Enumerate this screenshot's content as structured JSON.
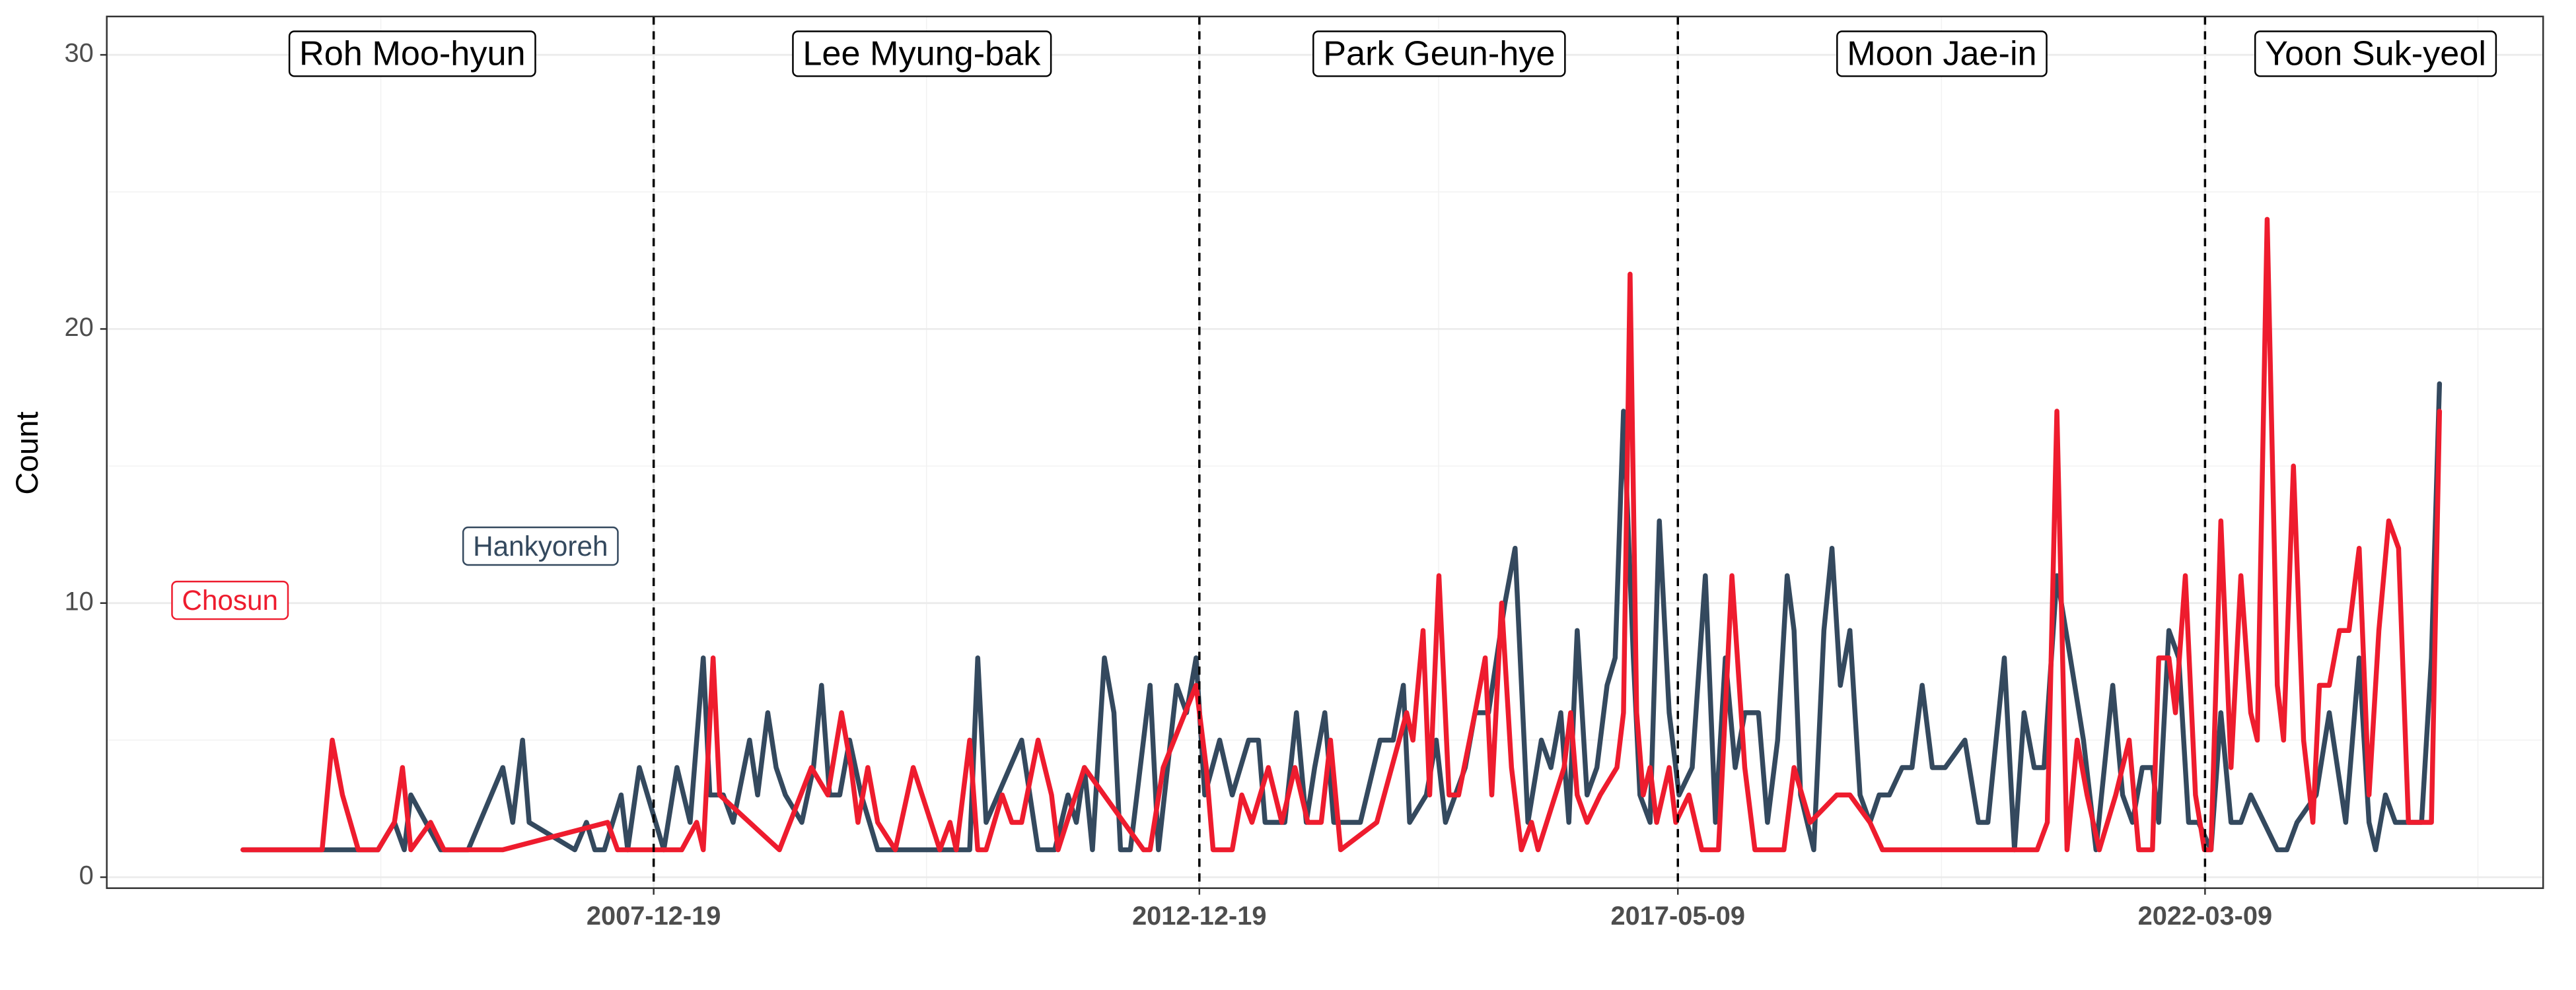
{
  "chart_data": {
    "type": "line",
    "y_label": "Count",
    "grid": true,
    "xlim": [
      "2002-12-14",
      "2025-04-14"
    ],
    "xticks": [
      "2007-12-19",
      "2012-12-19",
      "2017-05-09",
      "2022-03-09"
    ],
    "ylim": [
      -0.4,
      31.4
    ],
    "yticks": [
      0,
      10,
      20,
      30
    ],
    "periods": [
      "Roh Moo-hyun",
      "Lee Myung-bak",
      "Park Geun-hye",
      "Moon Jae-in",
      "Yoon Suk-yeol"
    ],
    "series": [
      {
        "name": "Hankyoreh",
        "color": "#34495e",
        "x": [
          "2004-03-14",
          "2005-06-09",
          "2005-08-03",
          "2005-09-05",
          "2005-09-27",
          "2006-01-05",
          "2006-04-07",
          "2006-08-01",
          "2006-09-03",
          "2006-10-06",
          "2006-10-28",
          "2007-03-30",
          "2007-05-08",
          "2007-06-05",
          "2007-07-07",
          "2007-09-01",
          "2007-09-23",
          "2007-11-01",
          "2008-01-22",
          "2008-03-06",
          "2008-04-19",
          "2008-06-02",
          "2008-06-24",
          "2008-08-08",
          "2008-09-10",
          "2008-11-04",
          "2008-12-01",
          "2009-01-04",
          "2009-02-01",
          "2009-03-04",
          "2009-04-28",
          "2009-06-06",
          "2009-07-03",
          "2009-07-30",
          "2009-09-02",
          "2009-10-05",
          "2009-11-13",
          "2010-01-07",
          "2010-08-19",
          "2010-11-11",
          "2010-12-08",
          "2011-01-05",
          "2011-05-04",
          "2011-06-28",
          "2011-08-23",
          "2011-10-06",
          "2011-11-03",
          "2011-11-30",
          "2011-12-27",
          "2012-02-05",
          "2012-03-08",
          "2012-03-30",
          "2012-05-02",
          "2012-07-07",
          "2012-08-04",
          "2012-10-04",
          "2012-11-06",
          "2012-12-08",
          "2013-01-06",
          "2013-02-25",
          "2013-04-08",
          "2013-06-02",
          "2013-07-05",
          "2013-07-27",
          "2013-10-01",
          "2013-11-09",
          "2013-12-12",
          "2014-01-09",
          "2014-02-12",
          "2014-03-14",
          "2014-06-11",
          "2014-08-16",
          "2014-09-29",
          "2014-11-02",
          "2014-11-23",
          "2015-01-18",
          "2015-02-20",
          "2015-03-23",
          "2015-05-28",
          "2015-06-30",
          "2015-08-14",
          "2015-10-08",
          "2015-11-11",
          "2015-12-24",
          "2016-02-07",
          "2016-03-10",
          "2016-04-12",
          "2016-05-09",
          "2016-06-06",
          "2016-07-09",
          "2016-08-11",
          "2016-09-14",
          "2016-10-11",
          "2016-11-08",
          "2016-12-11",
          "2017-01-02",
          "2017-02-05",
          "2017-03-08",
          "2017-04-10",
          "2017-05-13",
          "2017-06-26",
          "2017-08-09",
          "2017-09-12",
          "2017-10-15",
          "2017-11-17",
          "2017-12-19",
          "2018-02-03",
          "2018-03-05",
          "2018-04-08",
          "2018-05-10",
          "2018-06-02",
          "2018-06-24",
          "2018-08-07",
          "2018-09-10",
          "2018-10-07",
          "2018-11-04",
          "2018-12-06",
          "2019-01-09",
          "2019-02-11",
          "2019-03-14",
          "2019-04-17",
          "2019-05-30",
          "2019-07-02",
          "2019-08-05",
          "2019-09-08",
          "2019-10-21",
          "2019-12-26",
          "2020-02-09",
          "2020-03-12",
          "2020-05-06",
          "2020-06-09",
          "2020-07-11",
          "2020-08-14",
          "2020-09-16",
          "2020-10-29",
          "2020-12-13",
          "2021-01-26",
          "2021-03-09",
          "2021-05-04",
          "2021-06-06",
          "2021-07-09",
          "2021-08-11",
          "2021-09-14",
          "2021-10-05",
          "2021-11-08",
          "2021-12-11",
          "2022-01-13",
          "2022-02-15",
          "2022-03-29",
          "2022-05-01",
          "2022-06-04",
          "2022-07-07",
          "2022-08-09",
          "2022-11-06",
          "2022-12-08",
          "2023-01-11",
          "2023-03-16",
          "2023-04-29",
          "2023-06-23",
          "2023-08-07",
          "2023-09-09",
          "2023-10-01",
          "2023-11-03",
          "2023-12-06",
          "2024-01-19",
          "2024-03-03",
          "2024-04-05",
          "2024-05-02"
        ],
        "values": [
          1,
          1,
          2,
          1,
          3,
          1,
          1,
          4,
          2,
          5,
          2,
          1,
          2,
          1,
          1,
          3,
          1,
          4,
          1,
          4,
          2,
          8,
          3,
          3,
          2,
          5,
          3,
          6,
          4,
          3,
          2,
          4,
          7,
          3,
          3,
          5,
          3,
          1,
          1,
          1,
          8,
          2,
          5,
          1,
          1,
          3,
          2,
          4,
          1,
          8,
          6,
          1,
          1,
          7,
          1,
          7,
          6,
          8,
          3,
          5,
          3,
          5,
          5,
          2,
          2,
          6,
          2,
          4,
          6,
          2,
          2,
          5,
          5,
          7,
          2,
          3,
          5,
          2,
          4,
          6,
          6,
          10,
          12,
          2,
          5,
          4,
          6,
          2,
          9,
          3,
          4,
          7,
          8,
          17,
          8,
          3,
          2,
          13,
          6,
          3,
          4,
          11,
          2,
          8,
          4,
          6,
          6,
          2,
          5,
          11,
          9,
          3,
          1,
          9,
          12,
          7,
          9,
          3,
          2,
          3,
          3,
          4,
          4,
          7,
          4,
          4,
          5,
          2,
          2,
          8,
          1,
          6,
          4,
          4,
          11,
          8,
          5,
          1,
          7,
          3,
          2,
          4,
          4,
          2,
          9,
          8,
          2,
          2,
          1,
          6,
          2,
          2,
          3,
          1,
          1,
          2,
          3,
          6,
          2,
          8,
          2,
          1,
          3,
          2,
          2,
          2,
          8,
          18
        ]
      },
      {
        "name": "Chosun",
        "color": "#ee1c2e",
        "x": [
          "2004-03-14",
          "2004-12-04",
          "2005-01-07",
          "2005-02-10",
          "2005-04-04",
          "2005-06-09",
          "2005-08-03",
          "2005-08-30",
          "2005-09-27",
          "2005-12-02",
          "2006-01-16",
          "2006-08-01",
          "2007-07-18",
          "2007-08-20",
          "2007-12-19",
          "2008-03-22",
          "2008-05-11",
          "2008-06-02",
          "2008-07-05",
          "2008-07-27",
          "2009-02-12",
          "2009-05-30",
          "2009-07-24",
          "2009-09-08",
          "2009-10-10",
          "2009-11-02",
          "2009-12-05",
          "2010-01-07",
          "2010-03-07",
          "2010-05-06",
          "2010-08-03",
          "2010-09-06",
          "2010-09-27",
          "2010-11-11",
          "2010-12-08",
          "2011-01-05",
          "2011-02-28",
          "2011-04-01",
          "2011-05-04",
          "2011-06-28",
          "2011-08-12",
          "2011-09-03",
          "2011-11-30",
          "2012-06-15",
          "2012-07-07",
          "2012-08-20",
          "2012-12-08",
          "2013-01-11",
          "2013-02-03",
          "2013-04-08",
          "2013-05-10",
          "2013-06-13",
          "2013-08-07",
          "2013-09-21",
          "2013-11-04",
          "2013-12-17",
          "2014-01-31",
          "2014-03-03",
          "2014-04-06",
          "2014-08-05",
          "2014-11-13",
          "2014-12-04",
          "2015-01-07",
          "2015-01-29",
          "2015-03-01",
          "2015-04-04",
          "2015-05-06",
          "2015-06-30",
          "2015-08-03",
          "2015-08-25",
          "2015-09-27",
          "2015-10-30",
          "2015-12-02",
          "2016-01-05",
          "2016-01-27",
          "2016-04-23",
          "2016-05-15",
          "2016-06-06",
          "2016-07-09",
          "2016-08-22",
          "2016-10-17",
          "2016-11-08",
          "2016-11-30",
          "2016-12-22",
          "2017-01-13",
          "2017-02-05",
          "2017-02-27",
          "2017-04-10",
          "2017-05-02",
          "2017-06-15",
          "2017-07-28",
          "2017-09-22",
          "2017-11-06",
          "2017-12-19",
          "2018-01-22",
          "2018-04-29",
          "2018-06-02",
          "2018-07-26",
          "2018-10-23",
          "2018-12-06",
          "2019-02-11",
          "2019-03-25",
          "2020-08-24",
          "2020-09-27",
          "2020-10-29",
          "2020-12-02",
          "2021-01-05",
          "2021-02-07",
          "2021-03-20",
          "2021-05-14",
          "2021-06-28",
          "2021-07-30",
          "2021-09-14",
          "2021-10-05",
          "2021-11-08",
          "2021-11-30",
          "2022-01-02",
          "2022-02-05",
          "2022-03-07",
          "2022-03-29",
          "2022-05-01",
          "2022-06-04",
          "2022-07-07",
          "2022-08-09",
          "2022-08-31",
          "2022-10-03",
          "2022-11-06",
          "2022-11-27",
          "2022-12-30",
          "2023-02-02",
          "2023-03-05",
          "2023-03-27",
          "2023-04-29",
          "2023-06-02",
          "2023-07-04",
          "2023-08-07",
          "2023-09-09",
          "2023-10-12",
          "2023-11-14",
          "2023-12-17",
          "2024-01-19",
          "2024-04-05",
          "2024-05-02"
        ],
        "values": [
          1,
          1,
          5,
          3,
          1,
          1,
          2,
          4,
          1,
          2,
          1,
          1,
          2,
          1,
          1,
          1,
          2,
          1,
          8,
          3,
          1,
          4,
          3,
          6,
          4,
          2,
          4,
          2,
          1,
          4,
          1,
          2,
          1,
          5,
          1,
          1,
          3,
          2,
          2,
          5,
          3,
          1,
          4,
          1,
          1,
          4,
          7,
          4,
          1,
          1,
          3,
          2,
          4,
          2,
          4,
          2,
          2,
          5,
          1,
          2,
          6,
          5,
          9,
          3,
          11,
          3,
          3,
          6,
          8,
          3,
          10,
          4,
          1,
          2,
          1,
          4,
          6,
          3,
          2,
          3,
          4,
          6,
          22,
          6,
          3,
          4,
          2,
          4,
          2,
          3,
          1,
          1,
          11,
          4,
          1,
          1,
          4,
          2,
          3,
          3,
          2,
          1,
          1,
          2,
          17,
          1,
          5,
          3,
          1,
          3,
          5,
          1,
          1,
          8,
          8,
          6,
          11,
          3,
          1,
          1,
          13,
          4,
          11,
          6,
          5,
          24,
          7,
          5,
          15,
          5,
          2,
          7,
          7,
          9,
          9,
          12,
          3,
          9,
          13,
          12,
          2,
          2,
          17
        ]
      }
    ]
  }
}
